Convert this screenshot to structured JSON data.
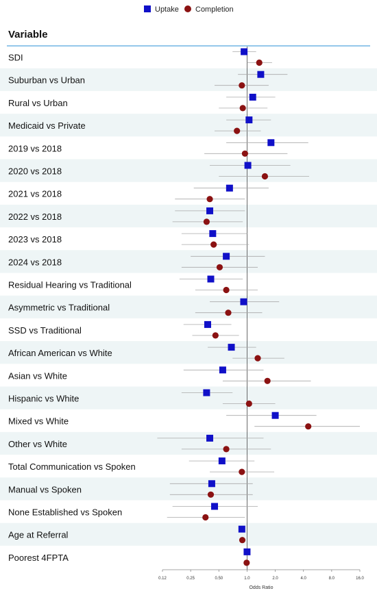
{
  "chart_data": {
    "type": "forest",
    "column_header": "Variable",
    "xlabel": "Odds Ratio",
    "x_scale": "log2",
    "xlim": [
      0.125,
      16
    ],
    "reference_line": 1.0,
    "x_ticks": [
      0.125,
      0.25,
      0.5,
      1.0,
      2.0,
      4.0,
      8.0,
      16.0
    ],
    "x_tick_labels": [
      "0.12",
      "0.25",
      "0.50",
      "1.0",
      "2.0",
      "4.0",
      "8.0",
      "16.0"
    ],
    "legend_position": "top-center",
    "series": [
      {
        "name": "Uptake",
        "marker": "square",
        "color": "#1010c8"
      },
      {
        "name": "Completion",
        "marker": "circle",
        "color": "#8b1212"
      }
    ],
    "rows": [
      {
        "label": "SDI",
        "uptake": {
          "or": 0.93,
          "lo": 0.7,
          "hi": 1.25
        },
        "completion": {
          "or": 1.35,
          "lo": 1.0,
          "hi": 1.85
        }
      },
      {
        "label": "Suburban vs Urban",
        "uptake": {
          "or": 1.4,
          "lo": 0.8,
          "hi": 2.7
        },
        "completion": {
          "or": 0.88,
          "lo": 0.45,
          "hi": 1.7
        }
      },
      {
        "label": "Rural vs Urban",
        "uptake": {
          "or": 1.15,
          "lo": 0.6,
          "hi": 2.0
        },
        "completion": {
          "or": 0.9,
          "lo": 0.5,
          "hi": 1.65
        }
      },
      {
        "label": "Medicaid vs Private",
        "uptake": {
          "or": 1.05,
          "lo": 0.6,
          "hi": 1.8
        },
        "completion": {
          "or": 0.78,
          "lo": 0.45,
          "hi": 1.4
        }
      },
      {
        "label": "2019 vs 2018",
        "uptake": {
          "or": 1.8,
          "lo": 0.6,
          "hi": 4.5
        },
        "completion": {
          "or": 0.95,
          "lo": 0.35,
          "hi": 2.7
        }
      },
      {
        "label": "2020 vs 2018",
        "uptake": {
          "or": 1.02,
          "lo": 0.4,
          "hi": 2.9
        },
        "completion": {
          "or": 1.55,
          "lo": 0.5,
          "hi": 4.6
        }
      },
      {
        "label": "2021 vs 2018",
        "uptake": {
          "or": 0.65,
          "lo": 0.27,
          "hi": 1.7
        },
        "completion": {
          "or": 0.4,
          "lo": 0.17,
          "hi": 0.95
        }
      },
      {
        "label": "2022 vs 2018",
        "uptake": {
          "or": 0.4,
          "lo": 0.17,
          "hi": 0.95
        },
        "completion": {
          "or": 0.37,
          "lo": 0.16,
          "hi": 0.9
        }
      },
      {
        "label": "2023 vs 2018",
        "uptake": {
          "or": 0.43,
          "lo": 0.2,
          "hi": 1.0
        },
        "completion": {
          "or": 0.44,
          "lo": 0.2,
          "hi": 1.05
        }
      },
      {
        "label": "2024 vs 2018",
        "uptake": {
          "or": 0.6,
          "lo": 0.25,
          "hi": 1.55
        },
        "completion": {
          "or": 0.51,
          "lo": 0.2,
          "hi": 1.3
        }
      },
      {
        "label": "Residual Hearing vs Traditional",
        "uptake": {
          "or": 0.41,
          "lo": 0.19,
          "hi": 0.9
        },
        "completion": {
          "or": 0.6,
          "lo": 0.28,
          "hi": 1.3
        }
      },
      {
        "label": "Asymmetric vs Traditional",
        "uptake": {
          "or": 0.92,
          "lo": 0.4,
          "hi": 2.2
        },
        "completion": {
          "or": 0.63,
          "lo": 0.28,
          "hi": 1.45
        }
      },
      {
        "label": "SSD vs Traditional",
        "uptake": {
          "or": 0.38,
          "lo": 0.21,
          "hi": 0.68
        },
        "completion": {
          "or": 0.46,
          "lo": 0.26,
          "hi": 0.82
        }
      },
      {
        "label": "African American vs White",
        "uptake": {
          "or": 0.68,
          "lo": 0.38,
          "hi": 1.25
        },
        "completion": {
          "or": 1.3,
          "lo": 0.7,
          "hi": 2.5
        }
      },
      {
        "label": "Asian vs White",
        "uptake": {
          "or": 0.55,
          "lo": 0.21,
          "hi": 1.5
        },
        "completion": {
          "or": 1.65,
          "lo": 0.55,
          "hi": 4.8
        }
      },
      {
        "label": "Hispanic vs White",
        "uptake": {
          "or": 0.37,
          "lo": 0.2,
          "hi": 0.7
        },
        "completion": {
          "or": 1.05,
          "lo": 0.55,
          "hi": 2.0
        }
      },
      {
        "label": "Mixed  vs White",
        "uptake": {
          "or": 2.0,
          "lo": 0.6,
          "hi": 5.5
        },
        "completion": {
          "or": 4.5,
          "lo": 1.2,
          "hi": 16.0
        }
      },
      {
        "label": "Other vs White",
        "uptake": {
          "or": 0.4,
          "lo": 0.11,
          "hi": 1.5
        },
        "completion": {
          "or": 0.6,
          "lo": 0.2,
          "hi": 1.8
        }
      },
      {
        "label": "Total Communication vs Spoken",
        "uptake": {
          "or": 0.54,
          "lo": 0.24,
          "hi": 1.2
        },
        "completion": {
          "or": 0.88,
          "lo": 0.4,
          "hi": 1.95
        }
      },
      {
        "label": "Manual  vs Spoken",
        "uptake": {
          "or": 0.42,
          "lo": 0.15,
          "hi": 1.15
        },
        "completion": {
          "or": 0.41,
          "lo": 0.15,
          "hi": 1.15
        }
      },
      {
        "label": "None Established vs Spoken",
        "uptake": {
          "or": 0.45,
          "lo": 0.16,
          "hi": 1.3
        },
        "completion": {
          "or": 0.36,
          "lo": 0.14,
          "hi": 0.95
        }
      },
      {
        "label": "Age at Referral",
        "uptake": {
          "or": 0.88,
          "lo": 0.82,
          "hi": 0.95
        },
        "completion": {
          "or": 0.89,
          "lo": 0.83,
          "hi": 0.96
        }
      },
      {
        "label": "Poorest 4FPTA",
        "uptake": {
          "or": 1.0,
          "lo": 0.97,
          "hi": 1.04
        },
        "completion": {
          "or": 0.99,
          "lo": 0.96,
          "hi": 1.03
        }
      }
    ]
  }
}
